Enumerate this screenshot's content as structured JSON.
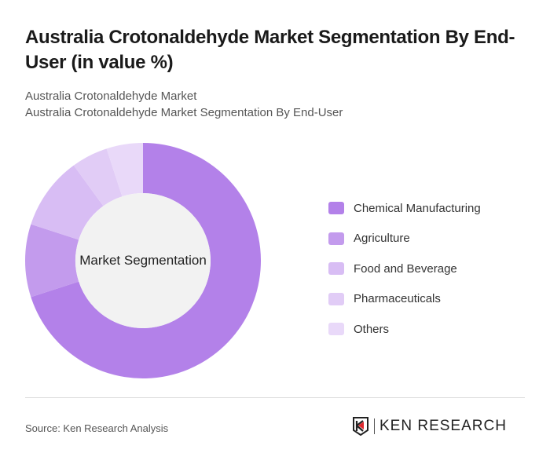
{
  "title": "Australia Crotonaldehyde Market Segmentation By End-User (in value %)",
  "subtitle_1": "Australia Crotonaldehyde Market",
  "subtitle_2": "Australia Crotonaldehyde Market Segmentation By End-User",
  "center_label": "Market Segmentation",
  "source": "Source: Ken Research Analysis",
  "logo": {
    "text": "KEN RESEARCH",
    "icon": "ken-research-logo-icon"
  },
  "chart_data": {
    "type": "pie",
    "donut": true,
    "title": "Australia Crotonaldehyde Market Segmentation By End-User (in value %)",
    "categories": [
      "Chemical Manufacturing",
      "Agriculture",
      "Food and Beverage",
      "Pharmaceuticals",
      "Others"
    ],
    "values": [
      70,
      10,
      10,
      5,
      5
    ],
    "colors": [
      "#b381e9",
      "#c39bed",
      "#d8bdf4",
      "#e1ccf6",
      "#e9d9f9"
    ],
    "legend_position": "right",
    "center_text": "Market Segmentation"
  },
  "legend": [
    {
      "label": "Chemical Manufacturing",
      "color": "#b381e9"
    },
    {
      "label": "Agriculture",
      "color": "#c39bed"
    },
    {
      "label": "Food and Beverage",
      "color": "#d8bdf4"
    },
    {
      "label": "Pharmaceuticals",
      "color": "#e1ccf6"
    },
    {
      "label": "Others",
      "color": "#e9d9f9"
    }
  ]
}
